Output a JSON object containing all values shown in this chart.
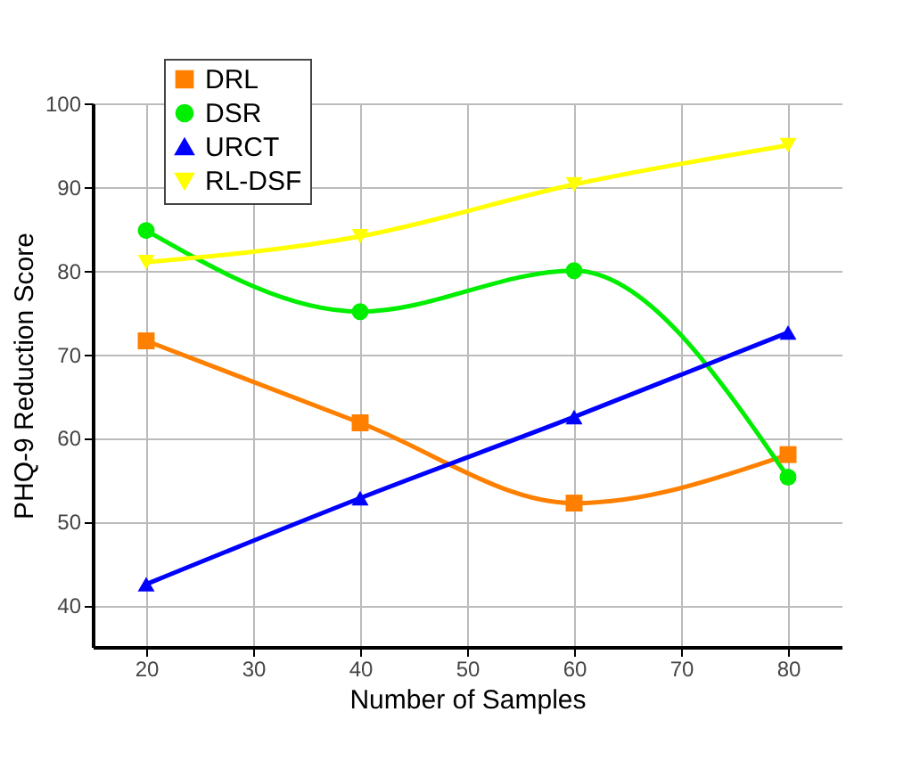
{
  "chart_data": {
    "type": "line",
    "xlabel": "Number of Samples",
    "ylabel": "PHQ-9 Reduction Score",
    "x": [
      20,
      40,
      60,
      80
    ],
    "xlim": [
      15,
      85
    ],
    "xticks": [
      20,
      30,
      40,
      50,
      60,
      70,
      80
    ],
    "ylim": [
      35,
      100
    ],
    "yticks": [
      40,
      50,
      60,
      70,
      80,
      90,
      100
    ],
    "grid": true,
    "legend": "top left",
    "series": [
      {
        "name": "DRL",
        "color": "#ff8000",
        "marker": "square",
        "values": [
          71.6,
          61.8,
          52.2,
          58.0
        ]
      },
      {
        "name": "DSR",
        "color": "#00ee00",
        "marker": "circle",
        "values": [
          84.8,
          75.1,
          80.0,
          55.3
        ]
      },
      {
        "name": "URCT",
        "color": "#0000ff",
        "marker": "triangle",
        "values": [
          42.5,
          52.8,
          62.5,
          72.6
        ]
      },
      {
        "name": "RL-DSF",
        "color": "#ffff00",
        "marker": "triangle-down",
        "values": [
          81.0,
          84.1,
          90.3,
          95.0
        ]
      }
    ]
  }
}
